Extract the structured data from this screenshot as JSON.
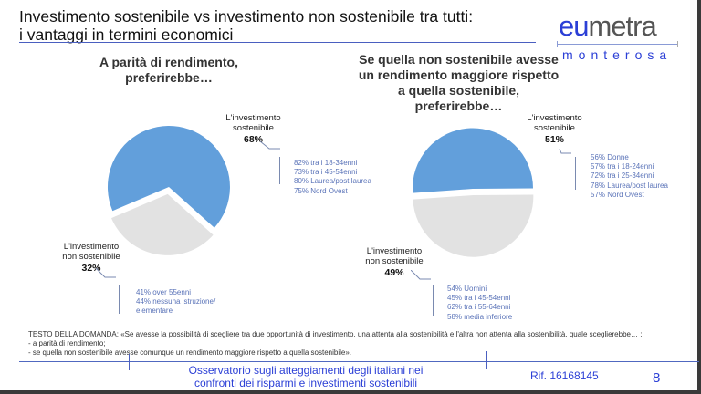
{
  "header": {
    "title_line1": "Investimento sostenibile vs investimento non sostenibile tra tutti:",
    "title_line2": "i vantaggi in termini economici"
  },
  "logo": {
    "part1": "eu",
    "part2": "metra",
    "subtitle": "monterosa"
  },
  "colors": {
    "sustainable": "#629fdb",
    "non_sustainable": "#e2e2e2",
    "accent_blue": "#2b3fd6",
    "note_blue": "#5a73b8"
  },
  "chart_data": [
    {
      "type": "pie",
      "title": "A parità di rendimento, preferirebbe…",
      "categories": [
        "L'investimento sostenibile",
        "L'investimento non sostenibile"
      ],
      "values": [
        68,
        32
      ],
      "exploded": "L'investimento non sostenibile",
      "annotations": {
        "L'investimento sostenibile": [
          "82% tra i 18-34enni",
          "73% tra i 45-54enni",
          "80% Laurea/post laurea",
          "75% Nord Ovest"
        ],
        "L'investimento non sostenibile": [
          "41% over 55enni",
          "44% nessuna istruzione/",
          "elementare"
        ]
      }
    },
    {
      "type": "pie",
      "title": "Se quella non sostenibile avesse un rendimento maggiore rispetto a quella sostenibile, preferirebbe…",
      "categories": [
        "L'investimento sostenibile",
        "L'investimento non sostenibile"
      ],
      "values": [
        51,
        49
      ],
      "exploded": "L'investimento non sostenibile",
      "annotations": {
        "L'investimento sostenibile": [
          "56%  Donne",
          "57% tra i 18-24enni",
          "72% tra i 25-34enni",
          "78% Laurea/post laurea",
          "57% Nord Ovest"
        ],
        "L'investimento non sostenibile": [
          "54% Uomini",
          "45% tra i 45-54enni",
          "62% tra i 55-64enni",
          "58% media inferiore"
        ]
      }
    }
  ],
  "left": {
    "question_line1": "A parità di rendimento,",
    "question_line2": "preferirebbe…",
    "sust_label1": "L'investimento",
    "sust_label2": "sostenibile",
    "sust_pct": "68%",
    "nonsust_label1": "L'investimento",
    "nonsust_label2": "non sostenibile",
    "nonsust_pct": "32%",
    "sust_notes": [
      "82% tra i 18-34enni",
      "73% tra i 45-54enni",
      "80% Laurea/post laurea",
      "75% Nord Ovest"
    ],
    "nonsust_notes": [
      "41% over 55enni",
      "44% nessuna istruzione/",
      "elementare"
    ]
  },
  "right": {
    "question_line1": "Se quella non sostenibile avesse",
    "question_line2": "un rendimento maggiore rispetto",
    "question_line3": "a quella  sostenibile,",
    "question_line4": "preferirebbe…",
    "sust_label1": "L'investimento",
    "sust_label2": "sostenibile",
    "sust_pct": "51%",
    "nonsust_label1": "L'investimento",
    "nonsust_label2": "non sostenibile",
    "nonsust_pct": "49%",
    "sust_notes": [
      "56%  Donne",
      "57% tra i 18-24enni",
      "72% tra i 25-34enni",
      "78% Laurea/post laurea",
      "57% Nord Ovest"
    ],
    "nonsust_notes": [
      "54% Uomini",
      "45% tra i 45-54enni",
      "62% tra i 55-64enni",
      "58% media inferiore"
    ]
  },
  "question_text": {
    "line1": "TESTO DELLA DOMANDA: «Se avesse la possibilità di scegliere tra due opportunità di investimento, una attenta alla sostenibilità e l'altra non attenta alla sostenibilità, quale sceglierebbe… :",
    "line2": " - a parità di rendimento;",
    "line3": "- se quella non sostenibile avesse comunque un rendimento maggiore rispetto a quella  sostenibile»."
  },
  "footer": {
    "line1": "Osservatorio sugli atteggiamenti degli italiani nei",
    "line2": "confronti dei risparmi e investimenti sostenibili",
    "ref": "Rif. 16168145",
    "page": "8"
  }
}
